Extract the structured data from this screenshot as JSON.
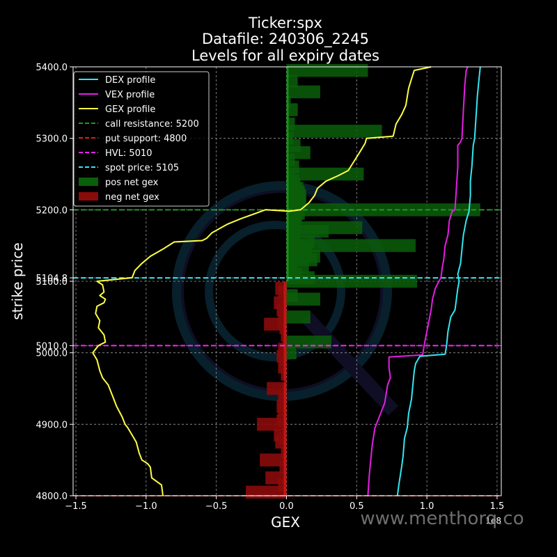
{
  "chart_data": {
    "type": "bar",
    "title_lines": [
      "Ticker:spx",
      "Datafile: 240306_2245",
      "Levels for all expiry dates"
    ],
    "xlabel": "GEX",
    "ylabel": "strike price",
    "x_exponent_label": "1e8",
    "xlim": [
      -1.52,
      1.53
    ],
    "ylim": [
      4800,
      5400
    ],
    "x_ticks": [
      -1.5,
      -1.0,
      -0.5,
      0.0,
      0.5,
      1.0,
      1.5
    ],
    "x_tick_labels": [
      "−1.5",
      "−1.0",
      "−0.5",
      "0.0",
      "0.5",
      "1.0",
      "1.5"
    ],
    "y_ticks": [
      4800,
      4900,
      5000,
      5010,
      5100,
      5104.8,
      5200,
      5300,
      5400
    ],
    "y_tick_labels": [
      "4800.0",
      "4900.0",
      "5000.0",
      "5010.0",
      "5100.0",
      "5104.8",
      "5200.0",
      "5300.0",
      "5400.0"
    ],
    "grid": true,
    "legend_position": "top-left",
    "colors": {
      "background": "#000000",
      "dex": "#33e8f2",
      "vex": "#e61ee6",
      "gex": "#ffff44",
      "call_resistance": "#1f9a1f",
      "put_support": "#e01d1d",
      "hvl": "#ff22ff",
      "spot": "#33e8f2",
      "pos_gex": "#0b5e0b",
      "neg_gex": "#8b0b0b",
      "grid": "#9a9a9a"
    },
    "legend": [
      {
        "label": "DEX profile",
        "kind": "line",
        "color": "#33e8f2"
      },
      {
        "label": "VEX profile",
        "kind": "line",
        "color": "#e61ee6"
      },
      {
        "label": "GEX profile",
        "kind": "line",
        "color": "#ffff44"
      },
      {
        "label": "call resistance: 5200",
        "kind": "dash",
        "color": "#1f9a1f"
      },
      {
        "label": "put support: 4800",
        "kind": "dash",
        "color": "#e01d1d"
      },
      {
        "label": "HVL: 5010",
        "kind": "dash",
        "color": "#ff22ff"
      },
      {
        "label": "spot price: 5105",
        "kind": "dash",
        "color": "#33e8f2"
      },
      {
        "label": "pos net gex",
        "kind": "patch",
        "color": "#0b5e0b"
      },
      {
        "label": "neg net gex",
        "kind": "patch",
        "color": "#8b0b0b"
      }
    ],
    "levels": {
      "call_resistance": 5200,
      "put_support": 4800,
      "hvl": 5010,
      "spot": 5104.8
    },
    "bar_height": 18,
    "pos_net_gex": [
      {
        "y": 5395,
        "x": 0.58
      },
      {
        "y": 5380,
        "x": 0.08
      },
      {
        "y": 5365,
        "x": 0.24
      },
      {
        "y": 5350,
        "x": 0.03
      },
      {
        "y": 5340,
        "x": 0.08
      },
      {
        "y": 5330,
        "x": 0.02
      },
      {
        "y": 5320,
        "x": 0.06
      },
      {
        "y": 5310,
        "x": 0.68
      },
      {
        "y": 5300,
        "x": 0.05
      },
      {
        "y": 5290,
        "x": 0.1
      },
      {
        "y": 5280,
        "x": 0.17
      },
      {
        "y": 5270,
        "x": 0.06
      },
      {
        "y": 5260,
        "x": 0.09
      },
      {
        "y": 5250,
        "x": 0.55
      },
      {
        "y": 5245,
        "x": 0.06
      },
      {
        "y": 5240,
        "x": 0.09
      },
      {
        "y": 5235,
        "x": 0.1
      },
      {
        "y": 5230,
        "x": 0.12
      },
      {
        "y": 5225,
        "x": 0.13
      },
      {
        "y": 5220,
        "x": 0.14
      },
      {
        "y": 5215,
        "x": 0.14
      },
      {
        "y": 5210,
        "x": 0.13
      },
      {
        "y": 5205,
        "x": 0.12
      },
      {
        "y": 5200,
        "x": 1.38
      },
      {
        "y": 5195,
        "x": 0.13
      },
      {
        "y": 5190,
        "x": 0.11
      },
      {
        "y": 5185,
        "x": 0.1
      },
      {
        "y": 5180,
        "x": 0.1
      },
      {
        "y": 5175,
        "x": 0.54
      },
      {
        "y": 5170,
        "x": 0.3
      },
      {
        "y": 5165,
        "x": 0.09
      },
      {
        "y": 5160,
        "x": 0.1
      },
      {
        "y": 5155,
        "x": 0.2
      },
      {
        "y": 5150,
        "x": 0.92
      },
      {
        "y": 5145,
        "x": 0.18
      },
      {
        "y": 5140,
        "x": 0.1
      },
      {
        "y": 5135,
        "x": 0.24
      },
      {
        "y": 5130,
        "x": 0.22
      },
      {
        "y": 5125,
        "x": 0.08
      },
      {
        "y": 5120,
        "x": 0.16
      },
      {
        "y": 5115,
        "x": 0.07
      },
      {
        "y": 5110,
        "x": 0.11
      },
      {
        "y": 5105,
        "x": 0.2
      },
      {
        "y": 5100,
        "x": 0.93
      },
      {
        "y": 5080,
        "x": 0.08
      },
      {
        "y": 5075,
        "x": 0.24
      },
      {
        "y": 5050,
        "x": 0.17
      },
      {
        "y": 5015,
        "x": 0.32
      },
      {
        "y": 5000,
        "x": 0.07
      }
    ],
    "neg_net_gex": [
      {
        "y": 5090,
        "x": -0.08
      },
      {
        "y": 5085,
        "x": -0.06
      },
      {
        "y": 5070,
        "x": -0.09
      },
      {
        "y": 5065,
        "x": -0.04
      },
      {
        "y": 5060,
        "x": -0.07
      },
      {
        "y": 5055,
        "x": -0.05
      },
      {
        "y": 5045,
        "x": -0.06
      },
      {
        "y": 5040,
        "x": -0.16
      },
      {
        "y": 5035,
        "x": -0.05
      },
      {
        "y": 5030,
        "x": -0.03
      },
      {
        "y": 5025,
        "x": -0.04
      },
      {
        "y": 5010,
        "x": -0.03
      },
      {
        "y": 5005,
        "x": -0.06
      },
      {
        "y": 4995,
        "x": -0.07
      },
      {
        "y": 4990,
        "x": -0.05
      },
      {
        "y": 4980,
        "x": -0.06
      },
      {
        "y": 4970,
        "x": -0.04
      },
      {
        "y": 4950,
        "x": -0.14
      },
      {
        "y": 4945,
        "x": -0.04
      },
      {
        "y": 4940,
        "x": -0.06
      },
      {
        "y": 4935,
        "x": -0.05
      },
      {
        "y": 4925,
        "x": -0.07
      },
      {
        "y": 4920,
        "x": -0.06
      },
      {
        "y": 4905,
        "x": -0.07
      },
      {
        "y": 4900,
        "x": -0.21
      },
      {
        "y": 4885,
        "x": -0.09
      },
      {
        "y": 4880,
        "x": -0.05
      },
      {
        "y": 4875,
        "x": -0.08
      },
      {
        "y": 4860,
        "x": -0.04
      },
      {
        "y": 4850,
        "x": -0.19
      },
      {
        "y": 4840,
        "x": -0.05
      },
      {
        "y": 4825,
        "x": -0.15
      },
      {
        "y": 4815,
        "x": -0.06
      },
      {
        "y": 4805,
        "x": -0.29
      }
    ],
    "gex_profile": [
      [
        -0.88,
        4800
      ],
      [
        -0.89,
        4815
      ],
      [
        -0.96,
        4825
      ],
      [
        -0.97,
        4840
      ],
      [
        -0.99,
        4845
      ],
      [
        -1.03,
        4850
      ],
      [
        -1.05,
        4860
      ],
      [
        -1.07,
        4875
      ],
      [
        -1.1,
        4885
      ],
      [
        -1.13,
        4895
      ],
      [
        -1.15,
        4900
      ],
      [
        -1.17,
        4910
      ],
      [
        -1.21,
        4925
      ],
      [
        -1.24,
        4940
      ],
      [
        -1.27,
        4955
      ],
      [
        -1.31,
        4965
      ],
      [
        -1.33,
        4975
      ],
      [
        -1.35,
        4990
      ],
      [
        -1.38,
        5000
      ],
      [
        -1.34,
        5010
      ],
      [
        -1.29,
        5015
      ],
      [
        -1.3,
        5025
      ],
      [
        -1.34,
        5035
      ],
      [
        -1.33,
        5045
      ],
      [
        -1.36,
        5055
      ],
      [
        -1.35,
        5065
      ],
      [
        -1.3,
        5070
      ],
      [
        -1.29,
        5075
      ],
      [
        -1.33,
        5080
      ],
      [
        -1.3,
        5085
      ],
      [
        -1.31,
        5095
      ],
      [
        -1.35,
        5100
      ],
      [
        -1.1,
        5105
      ],
      [
        -1.08,
        5115
      ],
      [
        -1.03,
        5125
      ],
      [
        -0.97,
        5135
      ],
      [
        -0.88,
        5145
      ],
      [
        -0.8,
        5155
      ],
      [
        -0.6,
        5157
      ],
      [
        -0.57,
        5160
      ],
      [
        -0.53,
        5168
      ],
      [
        -0.42,
        5180
      ],
      [
        -0.32,
        5188
      ],
      [
        -0.22,
        5195
      ],
      [
        -0.15,
        5200
      ],
      [
        0.02,
        5198
      ],
      [
        0.1,
        5200
      ],
      [
        0.16,
        5210
      ],
      [
        0.2,
        5220
      ],
      [
        0.22,
        5230
      ],
      [
        0.28,
        5240
      ],
      [
        0.37,
        5248
      ],
      [
        0.44,
        5255
      ],
      [
        0.52,
        5280
      ],
      [
        0.56,
        5293
      ],
      [
        0.57,
        5300
      ],
      [
        0.76,
        5303
      ],
      [
        0.78,
        5320
      ],
      [
        0.82,
        5333
      ],
      [
        0.85,
        5346
      ],
      [
        0.87,
        5370
      ],
      [
        0.89,
        5383
      ],
      [
        0.91,
        5395
      ],
      [
        1.03,
        5400
      ]
    ],
    "vex_profile": [
      [
        0.58,
        4800
      ],
      [
        0.59,
        4830
      ],
      [
        0.61,
        4870
      ],
      [
        0.63,
        4895
      ],
      [
        0.66,
        4910
      ],
      [
        0.68,
        4920
      ],
      [
        0.7,
        4930
      ],
      [
        0.72,
        4955
      ],
      [
        0.74,
        4965
      ],
      [
        0.73,
        4980
      ],
      [
        0.73,
        4994
      ],
      [
        0.97,
        4997
      ],
      [
        0.98,
        5010
      ],
      [
        1.03,
        5060
      ],
      [
        1.04,
        5075
      ],
      [
        1.06,
        5090
      ],
      [
        1.08,
        5098
      ],
      [
        1.1,
        5105
      ],
      [
        1.11,
        5120
      ],
      [
        1.12,
        5130
      ],
      [
        1.13,
        5150
      ],
      [
        1.15,
        5165
      ],
      [
        1.16,
        5185
      ],
      [
        1.18,
        5198
      ],
      [
        1.2,
        5200
      ],
      [
        1.21,
        5230
      ],
      [
        1.22,
        5260
      ],
      [
        1.22,
        5290
      ],
      [
        1.24,
        5295
      ],
      [
        1.25,
        5300
      ],
      [
        1.26,
        5340
      ],
      [
        1.27,
        5375
      ],
      [
        1.28,
        5395
      ],
      [
        1.29,
        5400
      ]
    ],
    "dex_profile": [
      [
        0.79,
        4800
      ],
      [
        0.8,
        4815
      ],
      [
        0.82,
        4840
      ],
      [
        0.83,
        4855
      ],
      [
        0.84,
        4880
      ],
      [
        0.86,
        4895
      ],
      [
        0.87,
        4915
      ],
      [
        0.88,
        4925
      ],
      [
        0.89,
        4935
      ],
      [
        0.9,
        4955
      ],
      [
        0.91,
        4975
      ],
      [
        0.92,
        4985
      ],
      [
        0.95,
        4995
      ],
      [
        1.13,
        4998
      ],
      [
        1.14,
        5010
      ],
      [
        1.15,
        5030
      ],
      [
        1.17,
        5050
      ],
      [
        1.2,
        5060
      ],
      [
        1.21,
        5075
      ],
      [
        1.22,
        5090
      ],
      [
        1.23,
        5100
      ],
      [
        1.22,
        5110
      ],
      [
        1.24,
        5125
      ],
      [
        1.25,
        5145
      ],
      [
        1.26,
        5165
      ],
      [
        1.28,
        5185
      ],
      [
        1.3,
        5198
      ],
      [
        1.31,
        5220
      ],
      [
        1.31,
        5240
      ],
      [
        1.32,
        5260
      ],
      [
        1.33,
        5290
      ],
      [
        1.34,
        5300
      ],
      [
        1.35,
        5330
      ],
      [
        1.36,
        5360
      ],
      [
        1.37,
        5380
      ],
      [
        1.38,
        5400
      ]
    ]
  },
  "watermark": "www.menthorq.co",
  "watermark_logo": "menthorq-logo-icon"
}
